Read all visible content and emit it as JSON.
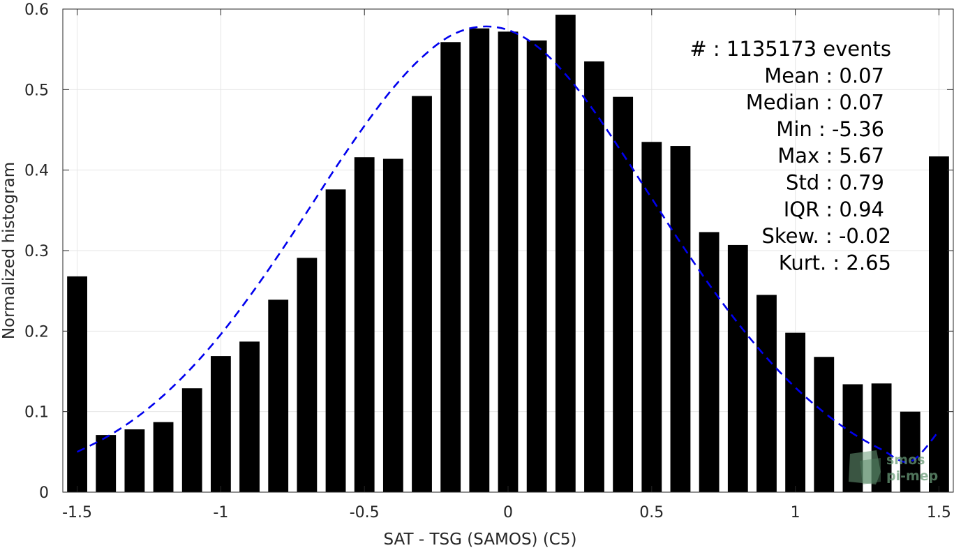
{
  "chart_data": {
    "type": "bar",
    "xlabel": "SAT - TSG (SAMOS) (C5)",
    "ylabel": "Normalized histogram",
    "xlim": [
      -1.55,
      1.55
    ],
    "ylim": [
      0,
      0.6
    ],
    "xticks": [
      -1.5,
      -1,
      -0.5,
      0,
      0.5,
      1,
      1.5
    ],
    "xtick_labels": [
      "-1.5",
      "-1",
      "-0.5",
      "0",
      "0.5",
      "1",
      "1.5"
    ],
    "yticks": [
      0,
      0.1,
      0.2,
      0.3,
      0.4,
      0.5,
      0.6
    ],
    "ytick_labels": [
      "0",
      "0.1",
      "0.2",
      "0.3",
      "0.4",
      "0.5",
      "0.6"
    ],
    "grid": true,
    "bar_color": "#000000",
    "bar_width": 0.07,
    "x": [
      -1.5,
      -1.4,
      -1.3,
      -1.2,
      -1.1,
      -1.0,
      -0.9,
      -0.8,
      -0.7,
      -0.6,
      -0.5,
      -0.4,
      -0.3,
      -0.2,
      -0.1,
      0.0,
      0.1,
      0.2,
      0.3,
      0.4,
      0.5,
      0.6,
      0.7,
      0.8,
      0.9,
      1.0,
      1.1,
      1.2,
      1.3,
      1.4,
      1.5
    ],
    "values": [
      0.268,
      0.071,
      0.078,
      0.087,
      0.129,
      0.169,
      0.187,
      0.239,
      0.291,
      0.376,
      0.416,
      0.414,
      0.492,
      0.559,
      0.576,
      0.572,
      0.561,
      0.593,
      0.535,
      0.491,
      0.435,
      0.43,
      0.323,
      0.307,
      0.245,
      0.198,
      0.168,
      0.134,
      0.135,
      0.1,
      0.417
    ],
    "fit": {
      "type": "gaussian",
      "color": "#0000ee",
      "style": "dashed",
      "x": [
        -1.5,
        -1.4,
        -1.3,
        -1.2,
        -1.1,
        -1.0,
        -0.9,
        -0.8,
        -0.7,
        -0.6,
        -0.5,
        -0.4,
        -0.3,
        -0.2,
        -0.1,
        0.0,
        0.1,
        0.2,
        0.3,
        0.4,
        0.5,
        0.6,
        0.7,
        0.8,
        0.9,
        1.0,
        1.1,
        1.2,
        1.3,
        1.4,
        1.5
      ],
      "y": [
        0.05,
        0.068,
        0.091,
        0.12,
        0.155,
        0.196,
        0.243,
        0.294,
        0.348,
        0.403,
        0.455,
        0.502,
        0.54,
        0.567,
        0.578,
        0.574,
        0.554,
        0.519,
        0.473,
        0.42,
        0.365,
        0.31,
        0.258,
        0.21,
        0.167,
        0.13,
        0.099,
        0.073,
        0.053,
        0.038,
        0.076
      ]
    },
    "annotations": [
      "#  : 1135173 events",
      "Mean : 0.07",
      "Median : 0.07",
      "Min : -5.36",
      "Max : 5.67",
      "Std : 0.79",
      "IQR : 0.94",
      "Skew. : -0.02",
      "Kurt. : 2.65"
    ],
    "watermark": [
      "smos",
      "pi-mep"
    ]
  }
}
